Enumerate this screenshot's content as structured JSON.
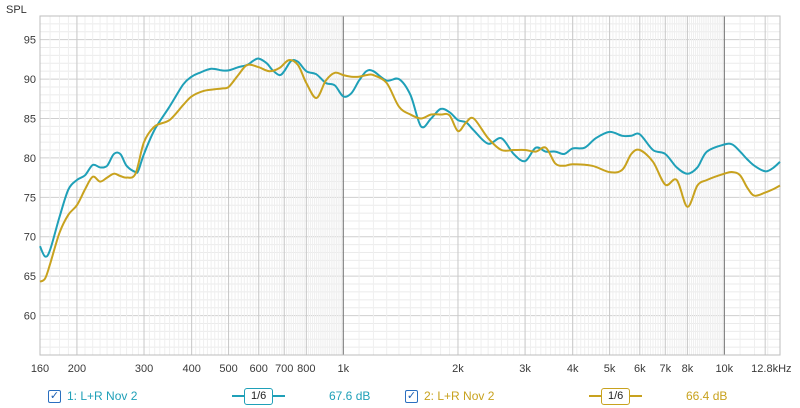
{
  "chart_data": {
    "type": "line",
    "title": "",
    "xlabel": "",
    "ylabel": "SPL",
    "xscale": "log",
    "xlim": [
      160,
      14000
    ],
    "ylim": [
      55,
      98
    ],
    "grid": true,
    "x_ticks": [
      {
        "value": 160,
        "label": "160"
      },
      {
        "value": 200,
        "label": "200"
      },
      {
        "value": 300,
        "label": "300"
      },
      {
        "value": 400,
        "label": "400"
      },
      {
        "value": 500,
        "label": "500"
      },
      {
        "value": 600,
        "label": "600"
      },
      {
        "value": 700,
        "label": "700"
      },
      {
        "value": 800,
        "label": "800"
      },
      {
        "value": 1000,
        "label": "1k"
      },
      {
        "value": 2000,
        "label": "2k"
      },
      {
        "value": 3000,
        "label": "3k"
      },
      {
        "value": 4000,
        "label": "4k"
      },
      {
        "value": 5000,
        "label": "5k"
      },
      {
        "value": 6000,
        "label": "6k"
      },
      {
        "value": 7000,
        "label": "7k"
      },
      {
        "value": 8000,
        "label": "8k"
      },
      {
        "value": 10000,
        "label": "10k"
      },
      {
        "value": 12800,
        "label": "12.8kHz"
      }
    ],
    "y_ticks": [
      60,
      65,
      70,
      75,
      80,
      85,
      90,
      95
    ],
    "series": [
      {
        "name": "1: L+R Nov 2",
        "color": "#1fa0b8",
        "x": [
          160,
          165,
          170,
          180,
          190,
          200,
          210,
          220,
          230,
          240,
          250,
          260,
          270,
          285,
          290,
          300,
          320,
          350,
          380,
          400,
          420,
          450,
          480,
          500,
          530,
          560,
          580,
          600,
          630,
          650,
          680,
          700,
          730,
          760,
          800,
          850,
          900,
          950,
          1000,
          1050,
          1100,
          1150,
          1200,
          1300,
          1400,
          1500,
          1600,
          1700,
          1800,
          1900,
          2000,
          2100,
          2200,
          2400,
          2600,
          2800,
          3000,
          3200,
          3400,
          3600,
          3800,
          4000,
          4300,
          4600,
          5000,
          5400,
          5700,
          6000,
          6500,
          7000,
          7500,
          8000,
          8500,
          9000,
          10000,
          10500,
          11000,
          11500,
          12000,
          12800,
          13400,
          14000
        ],
        "y": [
          68.8,
          67.5,
          68.3,
          72.5,
          76.0,
          77.2,
          77.8,
          79.1,
          78.8,
          79.0,
          80.5,
          80.5,
          79.0,
          78.2,
          78.4,
          80.5,
          83.6,
          86.5,
          89.3,
          90.3,
          90.8,
          91.3,
          91.1,
          91.1,
          91.5,
          91.8,
          92.3,
          92.6,
          92.0,
          91.2,
          90.5,
          91.0,
          92.3,
          92.2,
          91.0,
          90.6,
          89.5,
          89.2,
          87.8,
          88.2,
          89.8,
          91.0,
          91.0,
          89.8,
          90.0,
          88.0,
          84.0,
          85.0,
          86.2,
          85.8,
          84.8,
          84.5,
          83.5,
          81.8,
          82.5,
          80.5,
          79.6,
          81.3,
          80.8,
          80.8,
          80.5,
          81.2,
          81.3,
          82.5,
          83.3,
          82.8,
          82.8,
          83.0,
          81.0,
          80.5,
          78.8,
          78.0,
          78.8,
          80.8,
          81.7,
          81.7,
          80.8,
          79.8,
          79.0,
          78.3,
          78.7,
          79.5
        ]
      },
      {
        "name": "2: L+R Nov 2",
        "color": "#c8a21e",
        "x": [
          160,
          165,
          170,
          180,
          190,
          200,
          210,
          220,
          230,
          240,
          250,
          260,
          270,
          285,
          300,
          320,
          350,
          380,
          400,
          430,
          460,
          480,
          500,
          530,
          560,
          600,
          640,
          680,
          720,
          760,
          800,
          850,
          900,
          950,
          1000,
          1050,
          1100,
          1150,
          1200,
          1300,
          1400,
          1500,
          1600,
          1700,
          1800,
          1900,
          2000,
          2100,
          2200,
          2400,
          2600,
          2800,
          3000,
          3200,
          3400,
          3600,
          3800,
          4000,
          4500,
          5000,
          5400,
          5700,
          6000,
          6500,
          7000,
          7500,
          8000,
          8500,
          9000,
          10000,
          10500,
          11000,
          11500,
          12000,
          12800,
          13400,
          14000
        ],
        "y": [
          64.3,
          64.7,
          66.5,
          70.5,
          72.8,
          74.0,
          76.0,
          77.6,
          77.0,
          77.5,
          78.0,
          77.7,
          77.5,
          78.0,
          82.0,
          84.0,
          84.8,
          86.7,
          87.8,
          88.5,
          88.7,
          88.8,
          89.0,
          90.5,
          91.8,
          91.5,
          91.0,
          91.4,
          92.4,
          91.8,
          89.5,
          87.6,
          89.8,
          90.8,
          90.5,
          90.3,
          90.3,
          90.5,
          90.5,
          89.5,
          86.5,
          85.5,
          85.0,
          85.5,
          85.5,
          85.4,
          83.4,
          84.5,
          85.0,
          82.5,
          81.0,
          81.0,
          81.0,
          80.8,
          81.3,
          79.3,
          79.0,
          79.2,
          79.0,
          78.2,
          78.5,
          80.5,
          81.0,
          79.5,
          76.6,
          77.2,
          73.8,
          76.5,
          77.2,
          78.0,
          78.2,
          77.8,
          76.2,
          75.2,
          75.6,
          76.0,
          76.5
        ]
      }
    ]
  },
  "legend": {
    "items": [
      {
        "checked_glyph": "✓",
        "label": "1: L+R Nov 2",
        "smoothing": "1/6",
        "level": "67.6 dB",
        "color": "#1fa0b8"
      },
      {
        "checked_glyph": "✓",
        "label": "2: L+R Nov 2",
        "smoothing": "1/6",
        "level": "66.4 dB",
        "color": "#c8a21e"
      }
    ]
  }
}
